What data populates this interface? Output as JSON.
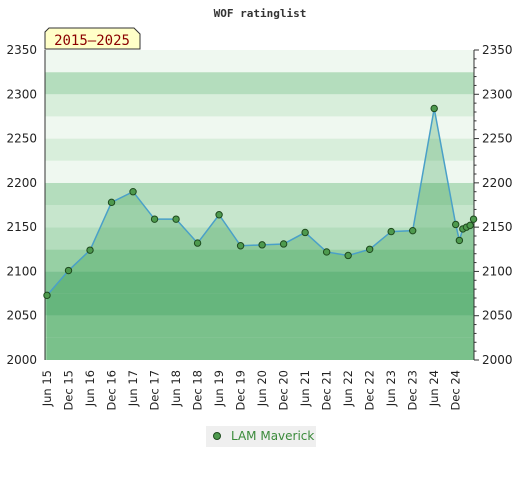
{
  "chart_data": {
    "type": "area",
    "title": "WOF ratinglist",
    "range_label": "2015–2025",
    "ylim": [
      2000,
      2350
    ],
    "yticks": [
      2000,
      2050,
      2100,
      2150,
      2200,
      2250,
      2300,
      2350
    ],
    "xtick_labels": [
      "Jun 15",
      "Dec 15",
      "Jun 16",
      "Dec 16",
      "Jun 17",
      "Dec 17",
      "Jun 18",
      "Dec 18",
      "Jun 19",
      "Dec 19",
      "Jun 20",
      "Dec 20",
      "Jun 21",
      "Dec 21",
      "Jun 22",
      "Dec 22",
      "Jun 23",
      "Dec 23",
      "Jun 24",
      "Dec 24"
    ],
    "legend_position": "bottom-center",
    "series": [
      {
        "name": "LAM Maverick",
        "color": "#4aa0c8",
        "marker_color": "#4e9a4e",
        "x": [
          0,
          1,
          2,
          3,
          4,
          5,
          6,
          7,
          8,
          9,
          10,
          11,
          12,
          13,
          14,
          15,
          16,
          17,
          18,
          19,
          19.17,
          19.33,
          19.5,
          19.67,
          19.83
        ],
        "values": [
          2073,
          2101,
          2124,
          2178,
          2190,
          2159,
          2159,
          2132,
          2164,
          2129,
          2130,
          2131,
          2144,
          2122,
          2118,
          2125,
          2145,
          2146,
          2284,
          2153,
          2135,
          2148,
          2150,
          2152,
          2159
        ]
      }
    ]
  }
}
